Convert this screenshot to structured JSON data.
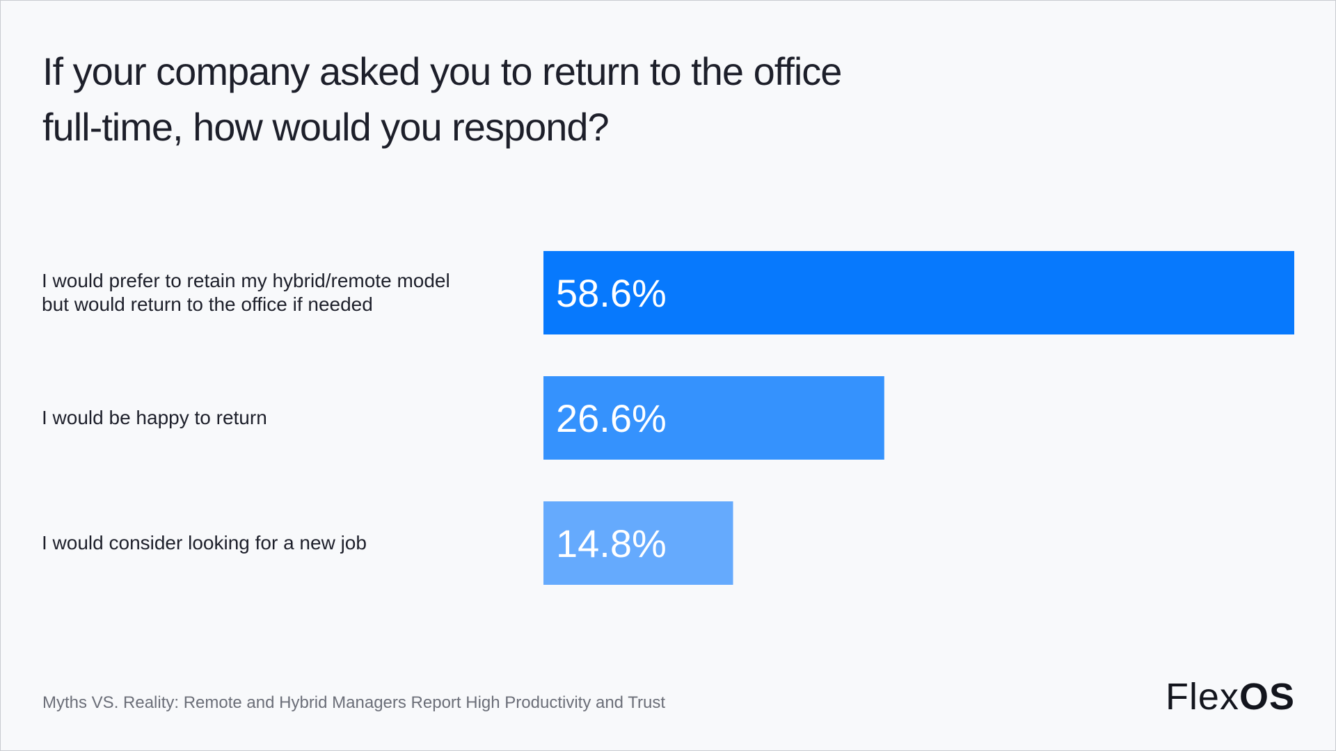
{
  "chart_data": {
    "type": "bar",
    "orientation": "horizontal",
    "title_lines": [
      "If your company asked you to return to the office",
      "full-time, how would you respond?"
    ],
    "categories": [
      "I would prefer to retain my hybrid/remote model but would return to the office if needed",
      "I would be happy to return",
      "I would consider looking for a new job"
    ],
    "category_lines": [
      [
        "I would prefer to retain my hybrid/remote model",
        "but would return to the office if needed"
      ],
      [
        "I would be happy to return"
      ],
      [
        "I would consider looking for a new job"
      ]
    ],
    "values": [
      58.6,
      26.6,
      14.8
    ],
    "data_labels": [
      "58.6%",
      "26.6%",
      "14.8%"
    ],
    "xlim": [
      0,
      58.6
    ],
    "bar_colors": [
      "#0779fd",
      "#3592fd",
      "#65aafd"
    ],
    "grid": false,
    "legend": "none"
  },
  "footer": {
    "source": "Myths VS. Reality: Remote and Hybrid Managers Report High Productivity and Trust"
  },
  "logo": {
    "part1": "Flex",
    "part2": "OS"
  }
}
